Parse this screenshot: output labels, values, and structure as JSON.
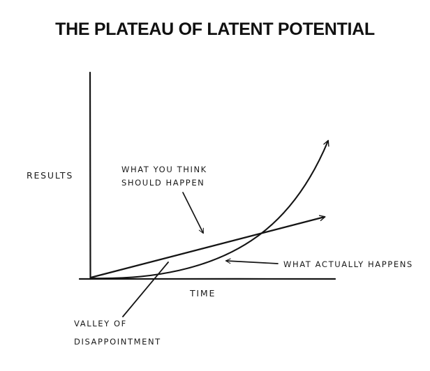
{
  "chart_data": {
    "type": "line",
    "title": "THE PLATEAU OF LATENT POTENTIAL",
    "xlabel": "TIME",
    "ylabel": "RESULTS",
    "grid": false,
    "series": [
      {
        "name": "WHAT YOU THINK SHOULD HAPPEN",
        "shape": "linear"
      },
      {
        "name": "WHAT ACTUALLY HAPPENS",
        "shape": "exponential"
      }
    ],
    "annotations": [
      {
        "text_lines": [
          "WHAT YOU THINK",
          "SHOULD HAPPEN"
        ],
        "points_to": "WHAT YOU THINK SHOULD HAPPEN"
      },
      {
        "text": "WHAT ACTUALLY HAPPENS",
        "points_to": "WHAT ACTUALLY HAPPENS"
      },
      {
        "text_lines": [
          "VALLEY OF",
          "DISAPPOINTMENT"
        ],
        "points_to": "gap between curves"
      }
    ],
    "colors": {
      "ink": "#141414",
      "background": "#ffffff"
    }
  }
}
